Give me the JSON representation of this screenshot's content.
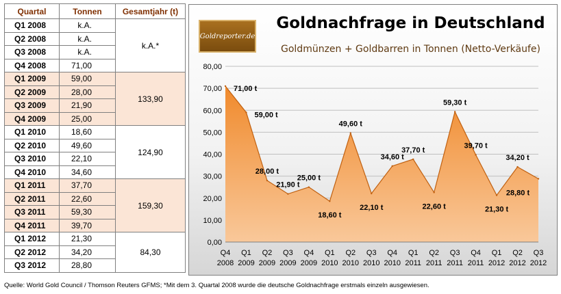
{
  "table": {
    "headers": [
      "Quartal",
      "Tonnen",
      "Gesamtjahr (t)"
    ],
    "groups": [
      {
        "total": "k.A.*",
        "rows": [
          [
            "Q1 2008",
            "k.A."
          ],
          [
            "Q2 2008",
            "k.A."
          ],
          [
            "Q3 2008",
            "k.A."
          ],
          [
            "Q4 2008",
            "71,00"
          ]
        ]
      },
      {
        "total": "133,90",
        "rows": [
          [
            "Q1 2009",
            "59,00"
          ],
          [
            "Q2 2009",
            "28,00"
          ],
          [
            "Q3 2009",
            "21,90"
          ],
          [
            "Q4 2009",
            "25,00"
          ]
        ]
      },
      {
        "total": "124,90",
        "rows": [
          [
            "Q1 2010",
            "18,60"
          ],
          [
            "Q2 2010",
            "49,60"
          ],
          [
            "Q3 2010",
            "22,10"
          ],
          [
            "Q4 2010",
            "34,60"
          ]
        ]
      },
      {
        "total": "159,30",
        "rows": [
          [
            "Q1 2011",
            "37,70"
          ],
          [
            "Q2 2011",
            "22,60"
          ],
          [
            "Q3 2011",
            "59,30"
          ],
          [
            "Q4 2011",
            "39,70"
          ]
        ]
      },
      {
        "total": "84,30",
        "rows": [
          [
            "Q1 2012",
            "21,30"
          ],
          [
            "Q2 2012",
            "34,20"
          ],
          [
            "Q3 2012",
            "28,80"
          ]
        ]
      }
    ]
  },
  "logo_text": "Goldreporter.de",
  "footnote": "Quelle: World Gold Council / Thomson Reuters GFMS; *Mit dem 3. Quartal 2008 wurde die deutsche Goldnachfrage erstmals einzeln ausgewiesen.",
  "colors": {
    "area_top": "#f08a2c",
    "area_bottom": "#f9c89a",
    "area_edge": "#c06010",
    "header_text": "#7f2f00",
    "row_shade": "#fbe5d6",
    "logo_bg": "#8a5a16"
  },
  "chart_data": {
    "type": "area",
    "title": "Goldnachfrage in Deutschland",
    "subtitle": "Goldmünzen + Goldbarren in Tonnen (Netto-Verkäufe)",
    "categories": [
      [
        "Q4",
        "2008"
      ],
      [
        "Q1",
        "2009"
      ],
      [
        "Q2",
        "2009"
      ],
      [
        "Q3",
        "2009"
      ],
      [
        "Q4",
        "2009"
      ],
      [
        "Q1",
        "2010"
      ],
      [
        "Q2",
        "2010"
      ],
      [
        "Q3",
        "2010"
      ],
      [
        "Q4",
        "2010"
      ],
      [
        "Q1",
        "2011"
      ],
      [
        "Q2",
        "2011"
      ],
      [
        "Q3",
        "2011"
      ],
      [
        "Q4",
        "2011"
      ],
      [
        "Q1",
        "2012"
      ],
      [
        "Q2",
        "2012"
      ],
      [
        "Q3",
        "2012"
      ]
    ],
    "values": [
      71.0,
      59.0,
      28.0,
      21.9,
      25.0,
      18.6,
      49.6,
      22.1,
      34.6,
      37.7,
      22.6,
      59.3,
      39.7,
      21.3,
      34.2,
      28.8
    ],
    "data_labels": [
      "71,00 t",
      "59,00 t",
      "28,00 t",
      "21,90 t",
      "25,00 t",
      "18,60 t",
      "49,60 t",
      "22,10 t",
      "34,60 t",
      "37,70 t",
      "22,60 t",
      "59,30 t",
      "39,70 t",
      "21,30 t",
      "34,20 t",
      "28,80 t"
    ],
    "label_side": [
      "right",
      "right",
      "above",
      "above",
      "above",
      "below",
      "above",
      "below",
      "above",
      "above",
      "below",
      "above",
      "above",
      "below",
      "above",
      "below"
    ],
    "y_ticks": [
      "0,00",
      "10,00",
      "20,00",
      "30,00",
      "40,00",
      "50,00",
      "60,00",
      "70,00",
      "80,00"
    ],
    "ylim": [
      0,
      80
    ],
    "grid": true,
    "legend": "none"
  }
}
